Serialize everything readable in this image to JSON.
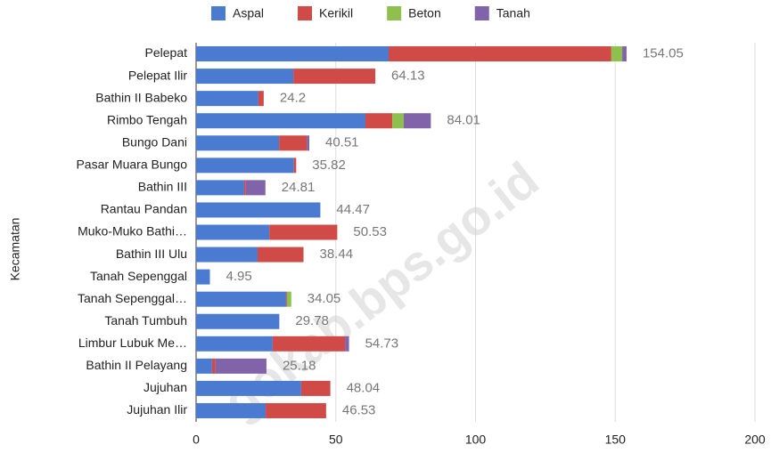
{
  "chart_data": {
    "type": "stacked-bar-horizontal",
    "y_label": "Kecamatan",
    "watermark": "gokab.bps.go.id",
    "categories": [
      "Pelepat",
      "Pelepat Ilir",
      "Bathin II Babeko",
      "Rimbo Tengah",
      "Bungo Dani",
      "Pasar Muara Bungo",
      "Bathin III",
      "Rantau Pandan",
      "Muko-Muko Bathi…",
      "Bathin III Ulu",
      "Tanah Sepenggal",
      "Tanah Sepenggal…",
      "Tanah Tumbuh",
      "Limbur Lubuk Me…",
      "Bathin II Pelayang",
      "Jujuhan",
      "Jujuhan Ilir"
    ],
    "series": [
      {
        "name": "Aspal",
        "color": "#4a7bd0",
        "values": [
          68.9,
          34.8,
          22.3,
          60.6,
          29.7,
          35.0,
          17.2,
          44.47,
          26.2,
          22.0,
          4.95,
          32.2,
          29.78,
          27.4,
          5.7,
          37.6,
          24.9
        ]
      },
      {
        "name": "Kerikil",
        "color": "#d04a48",
        "values": [
          79.7,
          29.33,
          1.9,
          9.6,
          9.9,
          0.82,
          0.6,
          0,
          24.33,
          16.44,
          0,
          0.3,
          0,
          25.9,
          1.2,
          10.44,
          21.63
        ]
      },
      {
        "name": "Beton",
        "color": "#8fc04e",
        "values": [
          3.9,
          0,
          0,
          4.1,
          0,
          0,
          0,
          0,
          0,
          0,
          0,
          1.55,
          0,
          0,
          0,
          0,
          0
        ]
      },
      {
        "name": "Tanah",
        "color": "#8063a8",
        "values": [
          1.55,
          0,
          0,
          9.71,
          0.91,
          0,
          7.01,
          0,
          0,
          0,
          0,
          0,
          0,
          1.43,
          18.28,
          0,
          0
        ]
      }
    ],
    "totals": [
      154.05,
      64.13,
      24.2,
      84.01,
      40.51,
      35.82,
      24.81,
      44.47,
      50.53,
      38.44,
      4.95,
      34.05,
      29.78,
      54.73,
      25.18,
      48.04,
      46.53
    ],
    "xlim": [
      0,
      200
    ],
    "xticks": [
      0,
      50,
      100,
      150,
      200
    ],
    "grid": true,
    "legend": "top"
  }
}
